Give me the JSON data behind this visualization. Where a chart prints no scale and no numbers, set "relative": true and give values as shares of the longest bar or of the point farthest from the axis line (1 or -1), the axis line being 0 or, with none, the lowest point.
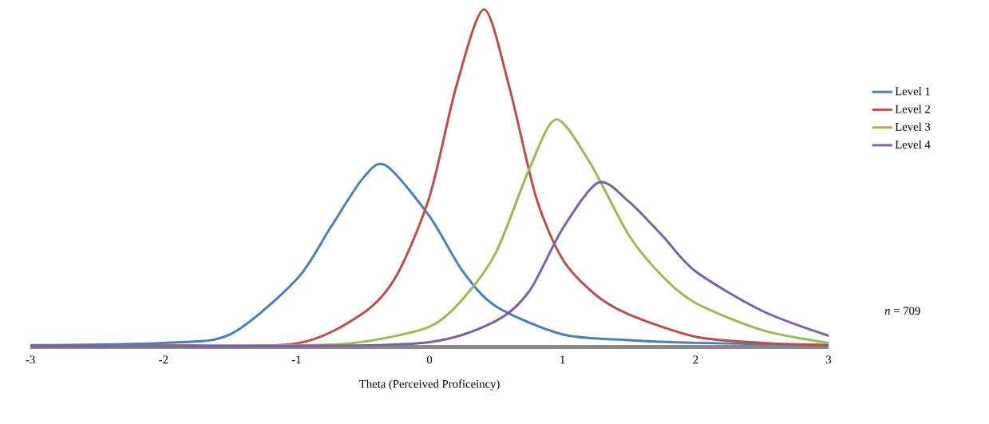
{
  "chart_data": {
    "type": "line",
    "relative": true,
    "xlabel": "Theta (Perceived Proficeincy)",
    "xlim": [
      -3,
      3
    ],
    "xticks": [
      -3,
      -2,
      -1,
      0,
      1,
      2,
      3
    ],
    "legend": "right",
    "grid": false,
    "marker": "none",
    "line_style": "solid",
    "annotations": [
      "*n* = 709"
    ],
    "series": [
      {
        "name": "Level 1",
        "color": "#4a7ebb",
        "x": [
          -3,
          -2,
          -1.5,
          -1,
          -0.75,
          -0.5,
          -0.33,
          0,
          0.25,
          0.5,
          1,
          1.5,
          2,
          3
        ],
        "values": [
          0.005,
          0.012,
          0.037,
          0.2,
          0.35,
          0.5,
          0.538,
          0.387,
          0.224,
          0.12,
          0.037,
          0.02,
          0.012,
          0.005
        ]
      },
      {
        "name": "Level 2",
        "color": "#be4b48",
        "x": [
          -3,
          -2,
          -1,
          -0.5,
          -0.25,
          0,
          0.2,
          0.41,
          0.6,
          0.8,
          1,
          1.25,
          1.5,
          2,
          2.5,
          3
        ],
        "values": [
          0.002,
          0.005,
          0.01,
          0.1,
          0.21,
          0.445,
          0.77,
          1.0,
          0.77,
          0.445,
          0.26,
          0.154,
          0.096,
          0.03,
          0.012,
          0.005
        ]
      },
      {
        "name": "Level 3",
        "color": "#98b954",
        "x": [
          -3,
          -1,
          -0.5,
          0,
          0.25,
          0.5,
          0.75,
          0.95,
          1.2,
          1.5,
          1.75,
          2,
          2.5,
          3
        ],
        "values": [
          0.002,
          0.005,
          0.015,
          0.06,
          0.142,
          0.28,
          0.527,
          0.674,
          0.55,
          0.33,
          0.21,
          0.13,
          0.05,
          0.012
        ]
      },
      {
        "name": "Level 4",
        "color": "#7d60a0",
        "x": [
          -3,
          -1,
          0,
          0.5,
          0.75,
          1,
          1.27,
          1.5,
          1.75,
          2,
          2.5,
          3
        ],
        "values": [
          0.002,
          0.003,
          0.014,
          0.077,
          0.165,
          0.35,
          0.487,
          0.43,
          0.33,
          0.224,
          0.107,
          0.033
        ]
      }
    ]
  }
}
